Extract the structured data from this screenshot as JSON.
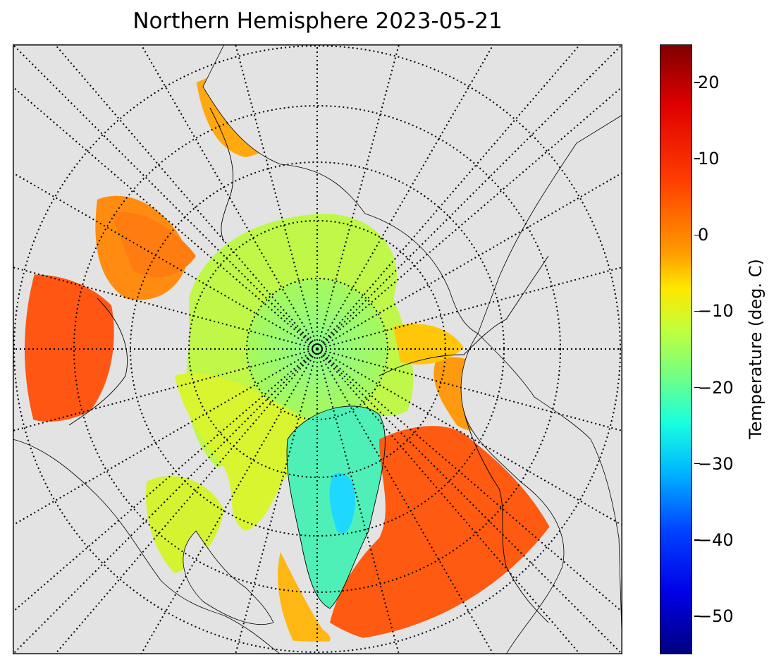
{
  "title": "Northern Hemisphere 2023-05-21",
  "map": {
    "projection": "north-polar-stereographic",
    "background_color": "#e3e3e3",
    "coastline_color": "#000000",
    "graticule_style": "dotted"
  },
  "colorbar": {
    "label": "Temperature (deg. C)",
    "min": -55,
    "max": 25,
    "colormap": "jet",
    "ticks": [
      {
        "value": 20,
        "label": "20"
      },
      {
        "value": 10,
        "label": "10"
      },
      {
        "value": 0,
        "label": "0"
      },
      {
        "value": -10,
        "label": "−10"
      },
      {
        "value": -20,
        "label": "−20"
      },
      {
        "value": -30,
        "label": "−30"
      },
      {
        "value": -40,
        "label": "−40"
      },
      {
        "value": -50,
        "label": "−50"
      }
    ]
  }
}
